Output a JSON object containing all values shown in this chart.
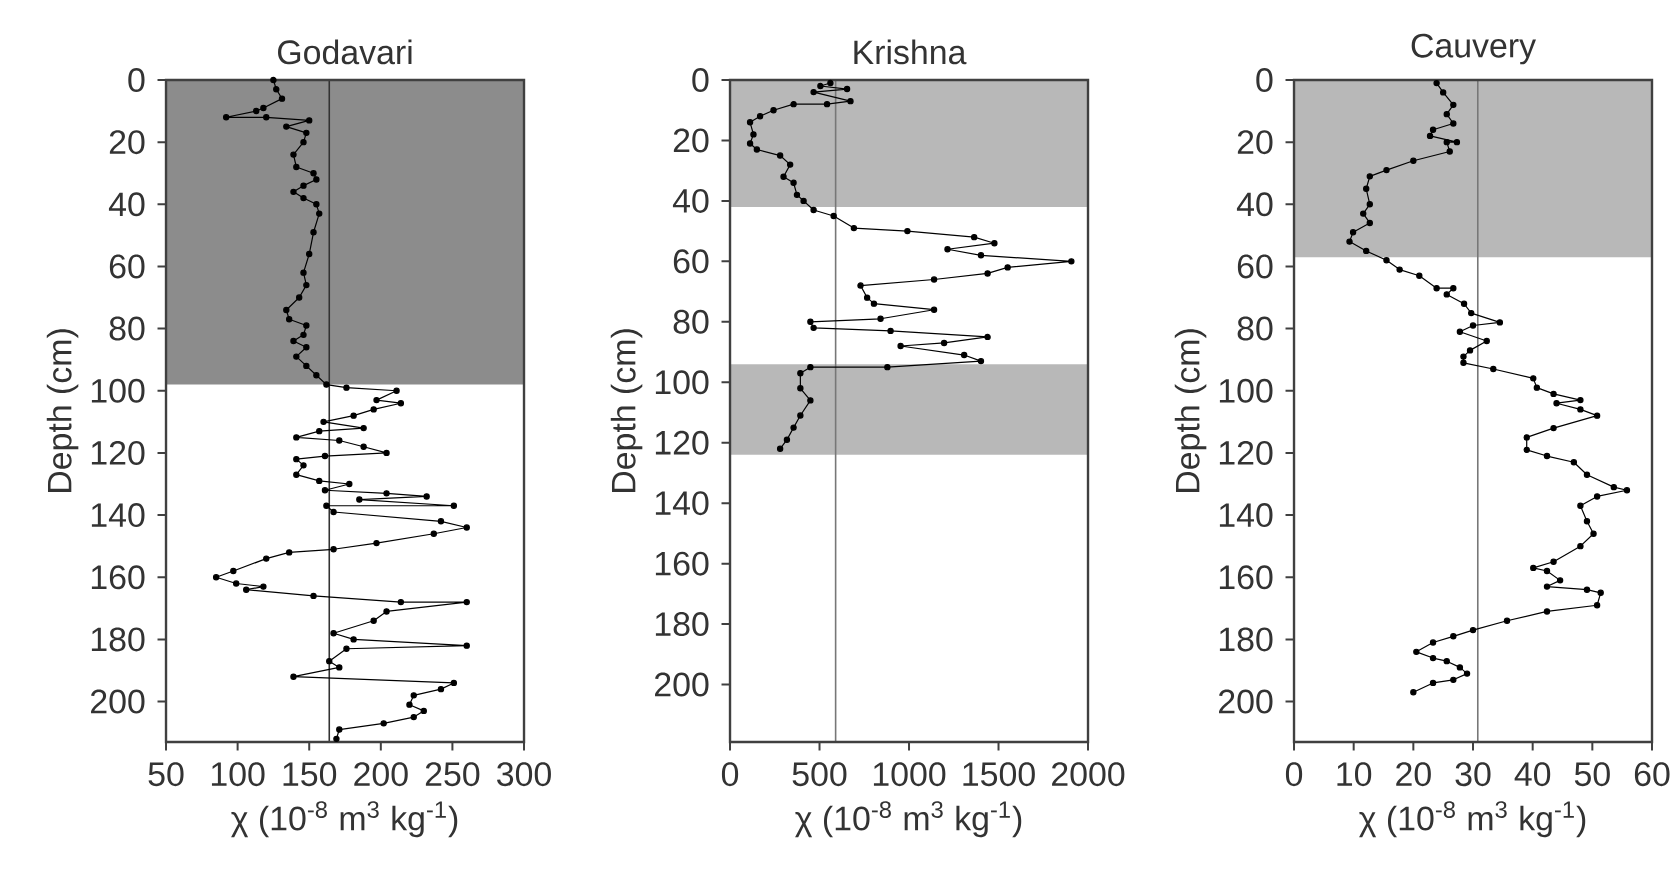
{
  "chart_data": [
    {
      "type": "line",
      "title": "Godavari",
      "xlabel": "χ (10$^{-8}$ m$^{3}$ kg$^{-1}$)",
      "ylabel": "Depth (cm)",
      "series": [
        {
          "color": "#000000",
          "x": [
            125,
            127,
            131,
            118,
            113,
            92,
            120,
            150,
            134,
            148,
            146,
            139,
            141,
            153,
            155,
            146,
            139,
            146,
            155,
            157,
            153,
            150,
            146,
            148,
            143,
            134,
            136,
            148,
            146,
            139,
            148,
            141,
            148,
            155,
            162,
            176,
            211,
            197,
            214,
            195,
            181,
            160,
            188,
            157,
            141,
            171,
            188,
            204,
            161,
            141,
            146,
            141,
            157,
            178,
            161,
            204,
            232,
            185,
            251,
            162,
            167,
            242,
            260,
            237,
            197,
            167,
            136,
            120,
            97,
            85,
            99,
            118,
            106,
            153,
            214,
            260,
            204,
            195,
            167,
            181,
            260,
            176,
            164,
            171,
            139,
            251,
            242,
            223,
            220,
            230,
            223,
            202,
            171,
            169
          ],
          "values": [
            0,
            3,
            6,
            9,
            10,
            12,
            12,
            13,
            15,
            17,
            20,
            24,
            28,
            30,
            32,
            34,
            36,
            38,
            40,
            43,
            49,
            56,
            62,
            66,
            70,
            74,
            77,
            79,
            82,
            84,
            86,
            89,
            92,
            95,
            98,
            99,
            100,
            103,
            104,
            106,
            108,
            110,
            112,
            113,
            115,
            116,
            118,
            120,
            121,
            122,
            124,
            127,
            129,
            130,
            132,
            133,
            134,
            135,
            137,
            137,
            139,
            142,
            144,
            146,
            149,
            151,
            152,
            154,
            158,
            160,
            162,
            163,
            164,
            166,
            168,
            168,
            171,
            174,
            178,
            180,
            182,
            183,
            187,
            189,
            192,
            194,
            196,
            198,
            201,
            203,
            205,
            207,
            209,
            212
          ]
        }
      ],
      "xlim": [
        50,
        300
      ],
      "xticks": [
        50,
        100,
        150,
        200,
        250,
        300
      ],
      "ylim": [
        213,
        0
      ],
      "yticks": [
        0,
        20,
        40,
        60,
        80,
        100,
        120,
        140,
        160,
        180,
        200
      ],
      "ref_lines": [
        {
          "axis": "x",
          "value": 164,
          "color": "#333333"
        }
      ],
      "bands": [
        {
          "axis": "y",
          "from": 0,
          "to": 98,
          "color": "#8c8c8c"
        }
      ],
      "marker": "circle",
      "line_style": "solid"
    },
    {
      "type": "line",
      "title": "Krishna",
      "xlabel": "χ (10$^{-8}$ m$^{3}$ kg$^{-1}$)",
      "ylabel": "Depth (cm)",
      "series": [
        {
          "color": "#000000",
          "x": [
            561,
            505,
            654,
            467,
            673,
            542,
            355,
            243,
            168,
            112,
            131,
            112,
            150,
            280,
            336,
            299,
            355,
            374,
            411,
            467,
            579,
            692,
            991,
            1364,
            1477,
            1215,
            1402,
            1907,
            1551,
            1439,
            1140,
            729,
            766,
            804,
            1140,
            841,
            449,
            467,
            897,
            1439,
            1196,
            953,
            1308,
            1402,
            879,
            449,
            393,
            393,
            449,
            393,
            355,
            318,
            280
          ],
          "values": [
            1,
            2,
            3,
            4,
            7,
            8,
            8,
            10,
            12,
            14,
            18,
            21,
            23,
            25,
            28,
            32,
            34,
            38,
            40,
            43,
            45,
            49,
            50,
            52,
            54,
            56,
            58,
            60,
            62,
            64,
            66,
            68,
            72,
            74,
            76,
            79,
            80,
            82,
            83,
            85,
            87,
            88,
            91,
            93,
            95,
            95,
            97,
            102,
            106,
            111,
            115,
            119,
            122
          ]
        }
      ],
      "xlim": [
        0,
        2000
      ],
      "xticks": [
        0,
        500,
        1000,
        1500,
        2000
      ],
      "ylim": [
        219,
        0
      ],
      "yticks": [
        0,
        20,
        40,
        60,
        80,
        100,
        120,
        140,
        160,
        180,
        200
      ],
      "ref_lines": [
        {
          "axis": "x",
          "value": 590,
          "color": "#777777"
        }
      ],
      "bands": [
        {
          "axis": "y",
          "from": 0,
          "to": 42,
          "color": "#b8b8b8"
        },
        {
          "axis": "y",
          "from": 94,
          "to": 124,
          "color": "#b8b8b8"
        }
      ],
      "marker": "circle",
      "line_style": "solid"
    },
    {
      "type": "line",
      "title": "Cauvery",
      "xlabel": "χ (10$^{-8}$ m$^{3}$ kg$^{-1}$)",
      "ylabel": "Depth (cm)",
      "series": [
        {
          "color": "#000000",
          "x": [
            23.9,
            25,
            26.7,
            25.6,
            26.7,
            23.3,
            22.8,
            27.3,
            25.6,
            26.1,
            20,
            15.5,
            12.7,
            12.1,
            12.7,
            11.6,
            12.7,
            9.9,
            9.3,
            12.1,
            15.5,
            17.7,
            21,
            23.9,
            26.7,
            25.6,
            28.5,
            29.7,
            34.5,
            30,
            27.8,
            32.3,
            29.5,
            28.4,
            28.4,
            33.4,
            40.1,
            40.7,
            43.5,
            48,
            44,
            48,
            50.8,
            43.5,
            39,
            39,
            42.4,
            46.9,
            49.1,
            53.6,
            55.8,
            50.8,
            48,
            49.1,
            50.2,
            48,
            43.5,
            40.1,
            42.4,
            44.6,
            42.4,
            49.1,
            51.4,
            50.8,
            42.4,
            35.7,
            30,
            26.7,
            23.3,
            20.5,
            23.3,
            25.6,
            27.8,
            29,
            26.7,
            23.3,
            20
          ],
          "values": [
            1,
            4,
            8,
            11,
            14,
            16,
            18,
            20,
            20,
            23,
            26,
            29,
            31,
            35,
            40,
            43,
            46,
            49,
            52,
            55,
            58,
            61,
            63,
            67,
            67,
            69,
            72,
            75,
            78,
            79,
            81,
            84,
            87,
            89,
            91,
            93,
            96,
            99,
            101,
            103,
            104,
            106,
            108,
            112,
            115,
            119,
            121,
            123,
            127,
            131,
            132,
            134,
            137,
            142,
            146,
            150,
            155,
            157,
            158,
            161,
            163,
            164,
            165,
            169,
            171,
            174,
            177,
            179,
            181,
            184,
            186,
            187,
            189,
            191,
            193,
            194,
            197
          ]
        }
      ],
      "xlim": [
        0,
        60
      ],
      "xticks": [
        0,
        10,
        20,
        30,
        40,
        50,
        60
      ],
      "ylim": [
        213,
        0
      ],
      "yticks": [
        0,
        20,
        40,
        60,
        80,
        100,
        120,
        140,
        160,
        180,
        200
      ],
      "ref_lines": [
        {
          "axis": "x",
          "value": 30.8,
          "color": "#777777"
        }
      ],
      "bands": [
        {
          "axis": "y",
          "from": 0,
          "to": 57,
          "color": "#b8b8b8"
        }
      ],
      "marker": "circle",
      "line_style": "solid"
    }
  ]
}
